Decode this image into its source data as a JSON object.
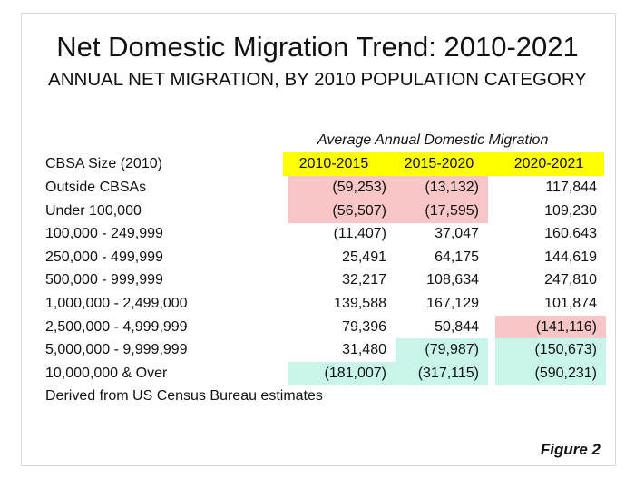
{
  "title": "Net Domestic Migration Trend: 2010-2021",
  "subtitle": "ANNUAL NET MIGRATION, BY 2010 POPULATION CATEGORY",
  "table": {
    "group_header": "Average Annual Domestic Migration",
    "row_header": "CBSA Size (2010)",
    "columns": [
      "2010-2015",
      "2015-2020",
      "2020-2021"
    ],
    "rows": [
      {
        "label": "Outside CBSAs",
        "values": [
          "(59,253)",
          "(13,132)",
          "117,844"
        ],
        "highlight": [
          "pink",
          "pink",
          ""
        ]
      },
      {
        "label": "Under 100,000",
        "values": [
          "(56,507)",
          "(17,595)",
          "109,230"
        ],
        "highlight": [
          "pink",
          "pink",
          ""
        ]
      },
      {
        "label": "100,000 - 249,999",
        "values": [
          "(11,407)",
          "37,047",
          "160,643"
        ],
        "highlight": [
          "",
          "",
          ""
        ]
      },
      {
        "label": "250,000 - 499,999",
        "values": [
          "25,491",
          "64,175",
          "144,619"
        ],
        "highlight": [
          "",
          "",
          ""
        ]
      },
      {
        "label": "500,000 - 999,999",
        "values": [
          "32,217",
          "108,634",
          "247,810"
        ],
        "highlight": [
          "",
          "",
          ""
        ]
      },
      {
        "label": "1,000,000 - 2,499,000",
        "values": [
          "139,588",
          "167,129",
          "101,874"
        ],
        "highlight": [
          "",
          "",
          ""
        ]
      },
      {
        "label": "2,500,000 - 4,999,999",
        "values": [
          "79,396",
          "50,844",
          "(141,116)"
        ],
        "highlight": [
          "",
          "",
          "pink"
        ]
      },
      {
        "label": "5,000,000 - 9,999,999",
        "values": [
          "31,480",
          "(79,987)",
          "(150,673)"
        ],
        "highlight": [
          "",
          "cyan",
          "cyan"
        ]
      },
      {
        "label": "10,000,000 & Over",
        "values": [
          "(181,007)",
          "(317,115)",
          "(590,231)"
        ],
        "highlight": [
          "cyan",
          "cyan",
          "cyan"
        ]
      }
    ]
  },
  "note": "Derived from US Census Bureau estimates",
  "figure_label": "Figure 2",
  "colors": {
    "header_highlight": "#ffff00",
    "negative_highlight": "#f8c6c6",
    "large_metro_highlight": "#c8f4ea"
  }
}
